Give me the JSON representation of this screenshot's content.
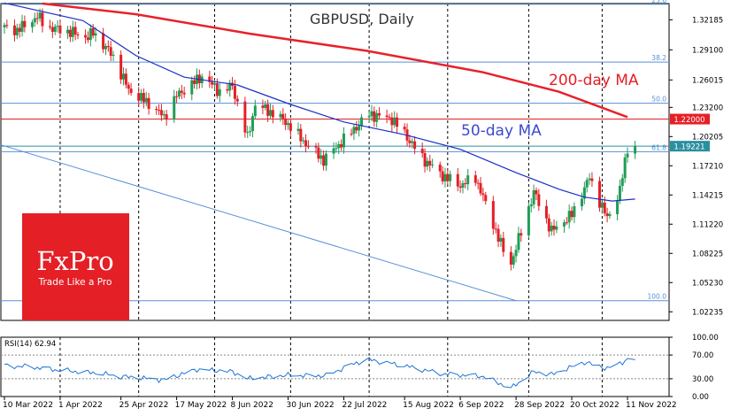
{
  "chart_data": [
    {
      "type": "candlestick",
      "title": "GBPUSD, Daily",
      "x_dates": [
        "10 Mar 2022",
        "1 Apr 2022",
        "25 Apr 2022",
        "17 May 2022",
        "8 Jun 2022",
        "30 Jun 2022",
        "22 Jul 2022",
        "15 Aug 2022",
        "6 Sep 2022",
        "28 Sep 2022",
        "20 Oct 2022",
        "11 Nov 2022"
      ],
      "x_date_values": [
        "2022-03-10",
        "2022-04-01",
        "2022-04-25",
        "2022-05-17",
        "2022-06-08",
        "2022-06-30",
        "2022-07-22",
        "2022-08-15",
        "2022-09-06",
        "2022-09-28",
        "2022-10-20",
        "2022-11-11"
      ],
      "y_ticks": [
        "1.32185",
        "1.29100",
        "1.26015",
        "1.23200",
        "1.20205",
        "1.17210",
        "1.14215",
        "1.11220",
        "1.08225",
        "1.05230",
        "1.02235"
      ],
      "ylim": [
        1.0135,
        1.3385
      ],
      "last_price": "1.19221",
      "level_label": "1.22000",
      "level": 1.22,
      "fib_levels": [
        {
          "label": "23.6",
          "value": 1.3378
        },
        {
          "label": "38.2",
          "value": 1.2785
        },
        {
          "label": "50.0",
          "value": 1.2362
        },
        {
          "label": "61.8",
          "value": 1.1865
        },
        {
          "label": "100.0",
          "value": 1.0337
        }
      ],
      "series": [
        {
          "name": "200-day MA",
          "color": "#e8212a",
          "points": [
            [
              "2022-03-25",
              1.3385
            ],
            [
              "2022-05-01",
              1.3275
            ],
            [
              "2022-06-15",
              1.3075
            ],
            [
              "2022-07-31",
              1.29
            ],
            [
              "2022-09-15",
              1.268
            ],
            [
              "2022-10-15",
              1.248
            ],
            [
              "2022-11-11",
              1.222
            ]
          ]
        },
        {
          "name": "50-day MA",
          "color": "#1b2fc4",
          "points": [
            [
              "2022-03-10",
              1.339
            ],
            [
              "2022-04-10",
              1.321
            ],
            [
              "2022-05-01",
              1.285
            ],
            [
              "2022-05-20",
              1.263
            ],
            [
              "2022-06-10",
              1.255
            ],
            [
              "2022-07-01",
              1.235
            ],
            [
              "2022-07-22",
              1.217
            ],
            [
              "2022-08-15",
              1.204
            ],
            [
              "2022-09-06",
              1.189
            ],
            [
              "2022-09-28",
              1.165
            ],
            [
              "2022-10-15",
              1.148
            ],
            [
              "2022-10-25",
              1.14
            ],
            [
              "2022-11-05",
              1.136
            ],
            [
              "2022-11-14",
              1.138
            ]
          ]
        }
      ],
      "price_path": [
        [
          "2022-03-10",
          1.314
        ],
        [
          "2022-03-15",
          1.311
        ],
        [
          "2022-03-23",
          1.325
        ],
        [
          "2022-03-28",
          1.313
        ],
        [
          "2022-04-01",
          1.312
        ],
        [
          "2022-04-12",
          1.304
        ],
        [
          "2022-04-14",
          1.309
        ],
        [
          "2022-04-22",
          1.284
        ],
        [
          "2022-04-28",
          1.25
        ],
        [
          "2022-05-06",
          1.236
        ],
        [
          "2022-05-12",
          1.222
        ],
        [
          "2022-05-17",
          1.244
        ],
        [
          "2022-05-27",
          1.264
        ],
        [
          "2022-06-03",
          1.248
        ],
        [
          "2022-06-08",
          1.254
        ],
        [
          "2022-06-14",
          1.2
        ],
        [
          "2022-06-17",
          1.235
        ],
        [
          "2022-06-24",
          1.226
        ],
        [
          "2022-06-30",
          1.215
        ],
        [
          "2022-07-05",
          1.2
        ],
        [
          "2022-07-14",
          1.178
        ],
        [
          "2022-07-22",
          1.199
        ],
        [
          "2022-08-01",
          1.225
        ],
        [
          "2022-08-10",
          1.22
        ],
        [
          "2022-08-15",
          1.205
        ],
        [
          "2022-08-22",
          1.18
        ],
        [
          "2022-08-30",
          1.162
        ],
        [
          "2022-09-06",
          1.152
        ],
        [
          "2022-09-12",
          1.16
        ],
        [
          "2022-09-23",
          1.085
        ],
        [
          "2022-09-26",
          1.072
        ],
        [
          "2022-10-05",
          1.145
        ],
        [
          "2022-10-12",
          1.105
        ],
        [
          "2022-10-20",
          1.122
        ],
        [
          "2022-10-27",
          1.16
        ],
        [
          "2022-11-03",
          1.118
        ],
        [
          "2022-11-08",
          1.147
        ],
        [
          "2022-11-11",
          1.19
        ],
        [
          "2022-11-14",
          1.1922
        ]
      ],
      "trendline": [
        [
          "2022-03-08",
          1.194
        ],
        [
          "2022-09-28",
          1.0337
        ]
      ],
      "vertical_grid_dates": [
        "2022-04-01",
        "2022-05-02",
        "2022-06-01",
        "2022-07-01",
        "2022-08-01",
        "2022-09-01",
        "2022-10-03",
        "2022-11-01"
      ],
      "logo": {
        "brand": "FxPro",
        "tagline": "Trade Like a Pro",
        "color": "#e41f26"
      }
    },
    {
      "type": "line",
      "title": "RSI(14) 62.94",
      "ylim": [
        0,
        100
      ],
      "y_ticks": [
        "100.00",
        "70.00",
        "30.00",
        "0.00"
      ],
      "levels": [
        70,
        30
      ],
      "series": [
        {
          "name": "RSI(14)",
          "color": "#1e74d6",
          "points": [
            [
              "2022-03-10",
              52
            ],
            [
              "2022-03-20",
              50
            ],
            [
              "2022-04-01",
              44
            ],
            [
              "2022-04-15",
              40
            ],
            [
              "2022-04-25",
              34
            ],
            [
              "2022-05-12",
              28
            ],
            [
              "2022-05-25",
              46
            ],
            [
              "2022-06-08",
              42
            ],
            [
              "2022-06-14",
              30
            ],
            [
              "2022-06-30",
              36
            ],
            [
              "2022-07-15",
              35
            ],
            [
              "2022-07-25",
              54
            ],
            [
              "2022-08-01",
              62
            ],
            [
              "2022-08-15",
              52
            ],
            [
              "2022-08-30",
              38
            ],
            [
              "2022-09-15",
              34
            ],
            [
              "2022-09-26",
              14
            ],
            [
              "2022-10-05",
              42
            ],
            [
              "2022-10-12",
              37
            ],
            [
              "2022-10-25",
              58
            ],
            [
              "2022-11-03",
              47
            ],
            [
              "2022-11-11",
              62
            ],
            [
              "2022-11-14",
              63
            ]
          ]
        }
      ]
    }
  ]
}
